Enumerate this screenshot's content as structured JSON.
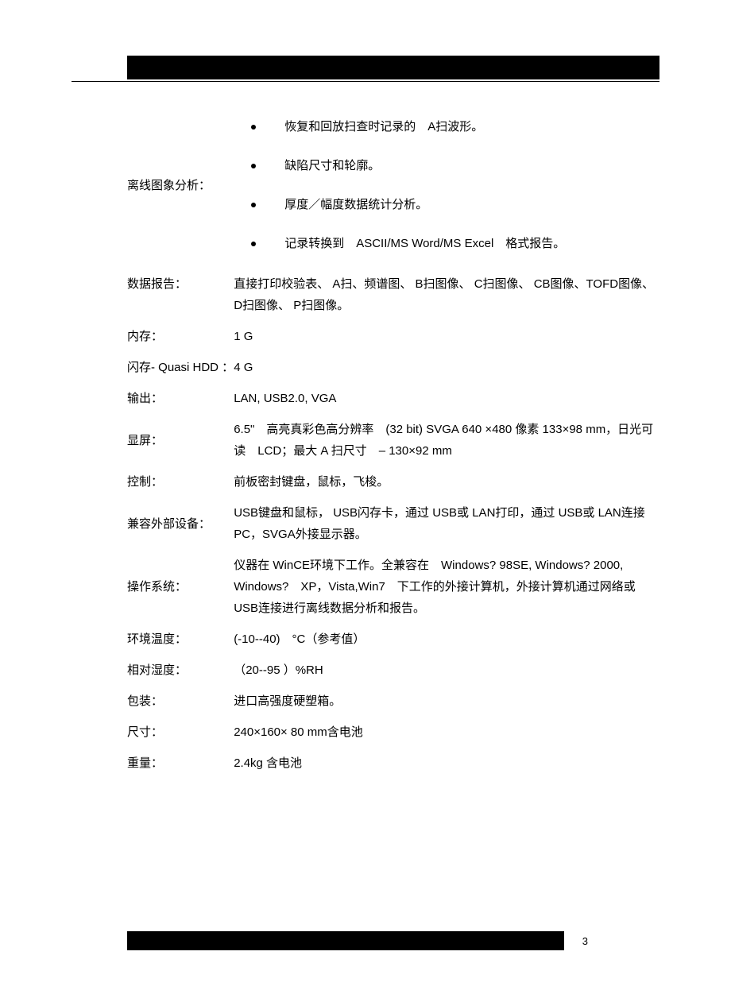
{
  "colors": {
    "background": "#ffffff",
    "text": "#000000",
    "bar": "#000000"
  },
  "offline_analysis": {
    "label": "离线图象分析：",
    "bullets": [
      "恢复和回放扫查时记录的　A扫波形。",
      "缺陷尺寸和轮廓。",
      "厚度／幅度数据统计分析。",
      "记录转换到　ASCII/MS Word/MS Excel　格式报告。"
    ]
  },
  "rows": {
    "data_report": {
      "label": "数据报告：",
      "value": "直接打印校验表、 A扫、频谱图、 B扫图像、 C扫图像、 CB图像、TOFD图像、 D扫图像、 P扫图像。"
    },
    "memory": {
      "label": "内存：",
      "value": "1 G"
    },
    "flash": {
      "label": "闪存- Quasi HDD ：",
      "value": "4 G"
    },
    "output": {
      "label": "输出：",
      "value": "LAN, USB2.0, VGA"
    },
    "display": {
      "label": "显屏：",
      "value": "6.5\"　高亮真彩色高分辨率　(32 bit) SVGA 640 ×480 像素 133×98 mm，日光可读　LCD；最大 A 扫尺寸　– 130×92 mm"
    },
    "control": {
      "label": "控制：",
      "value": "前板密封键盘，鼠标，飞梭。"
    },
    "compat": {
      "label": "兼容外部设备：",
      "value": "USB键盘和鼠标， USB闪存卡，通过 USB或 LAN打印，通过 USB或 LAN连接 PC，SVGA外接显示器。"
    },
    "os": {
      "label": "操作系统：",
      "value": "仪器在 WinCE环境下工作。全兼容在　Windows? 98SE, Windows? 2000, Windows?　XP，Vista,Win7　下工作的外接计算机，外接计算机通过网络或　USB连接进行离线数据分析和报告。"
    },
    "env_temp": {
      "label": "环境温度：",
      "value": "(-10--40)　°C（参考值）"
    },
    "humidity": {
      "label": "相对湿度：",
      "value": "（20--95 ）%RH"
    },
    "packaging": {
      "label": "包装：",
      "value": "进口高强度硬塑箱。"
    },
    "size": {
      "label": "尺寸：",
      "value": "240×160× 80 mm含电池"
    },
    "weight": {
      "label": "重量：",
      "value": "2.4kg 含电池"
    }
  },
  "page_number": "3"
}
